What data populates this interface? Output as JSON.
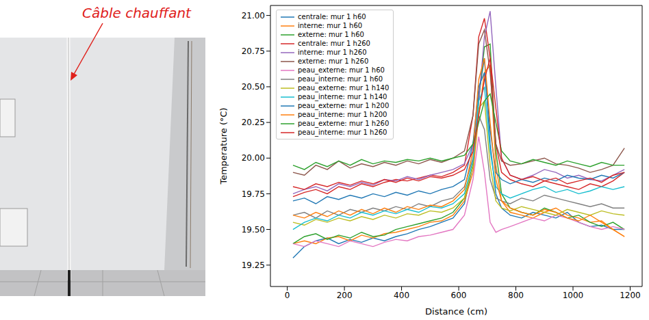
{
  "chart_data": {
    "type": "line",
    "xlabel": "Distance (cm)",
    "ylabel": "Temperature (°C)",
    "legend": "upper left",
    "grid": false,
    "xlim": [
      -59,
      1242
    ],
    "ylim": [
      19.1,
      21.07
    ],
    "xticks": [
      0,
      200,
      400,
      600,
      800,
      1000,
      1200
    ],
    "yticks": [
      19.25,
      {
        "value": 19.5,
        "label": "19.50"
      },
      19.75,
      {
        "value": 20,
        "label": "20.00"
      },
      20.25,
      {
        "value": 20.5,
        "label": "20.50"
      },
      20.75,
      {
        "value": 21,
        "label": "21.00"
      }
    ],
    "x": [
      20,
      60,
      100,
      140,
      180,
      220,
      260,
      300,
      340,
      380,
      420,
      460,
      500,
      540,
      580,
      620,
      650,
      670,
      690,
      710,
      730,
      750,
      780,
      820,
      860,
      900,
      940,
      980,
      1020,
      1060,
      1100,
      1140,
      1180
    ],
    "series": [
      {
        "name": "centrale: mur 1 h60",
        "color": "#1f77b4",
        "values": [
          19.3,
          19.38,
          19.42,
          19.44,
          19.4,
          19.43,
          19.41,
          19.44,
          19.42,
          19.45,
          19.47,
          19.5,
          19.52,
          19.55,
          19.58,
          19.68,
          19.95,
          20.45,
          20.7,
          20.1,
          19.75,
          19.65,
          19.6,
          19.58,
          19.62,
          19.6,
          19.58,
          19.62,
          19.55,
          19.52,
          19.53,
          19.5,
          19.5
        ]
      },
      {
        "name": "interne: mur 1 h60",
        "color": "#ff7f0e",
        "values": [
          19.4,
          19.42,
          19.4,
          19.44,
          19.45,
          19.42,
          19.46,
          19.44,
          19.47,
          19.48,
          19.5,
          19.52,
          19.55,
          19.56,
          19.6,
          19.7,
          19.9,
          20.3,
          20.6,
          20.65,
          19.95,
          19.7,
          19.62,
          19.6,
          19.58,
          19.62,
          19.65,
          19.6,
          19.58,
          19.55,
          19.56,
          19.5,
          19.45
        ]
      },
      {
        "name": "externe: mur 1 h60",
        "color": "#2ca02c",
        "values": [
          19.4,
          19.45,
          19.47,
          19.43,
          19.46,
          19.44,
          19.48,
          19.45,
          19.46,
          19.5,
          19.52,
          19.54,
          19.56,
          19.58,
          19.62,
          19.72,
          19.95,
          20.4,
          20.78,
          20.8,
          20.05,
          19.75,
          19.65,
          19.62,
          19.6,
          19.65,
          19.62,
          19.58,
          19.6,
          19.55,
          19.52,
          19.55,
          19.5
        ]
      },
      {
        "name": "centrale: mur 1 h260",
        "color": "#d62728",
        "values": [
          19.73,
          19.76,
          19.78,
          19.75,
          19.8,
          19.78,
          19.82,
          19.8,
          19.83,
          19.85,
          19.84,
          19.86,
          19.88,
          19.87,
          19.9,
          19.95,
          20.3,
          20.85,
          20.98,
          20.7,
          20.1,
          19.9,
          19.85,
          19.82,
          19.8,
          19.84,
          19.82,
          19.8,
          19.78,
          19.82,
          19.8,
          19.84,
          19.9
        ]
      },
      {
        "name": "interne: mur 1 h260",
        "color": "#9467bd",
        "values": [
          19.75,
          19.78,
          19.8,
          19.77,
          19.82,
          19.8,
          19.83,
          19.81,
          19.85,
          19.84,
          19.87,
          19.85,
          19.88,
          19.9,
          19.92,
          19.96,
          20.1,
          20.4,
          20.85,
          21.03,
          20.5,
          20.0,
          19.88,
          19.85,
          19.88,
          19.92,
          19.9,
          19.86,
          19.88,
          19.85,
          19.84,
          19.88,
          19.92
        ]
      },
      {
        "name": "externe: mur 1 h260",
        "color": "#8c564b",
        "values": [
          19.9,
          19.88,
          19.95,
          19.92,
          19.98,
          19.93,
          19.96,
          19.94,
          19.97,
          19.95,
          19.98,
          19.96,
          19.99,
          19.97,
          20.0,
          20.05,
          20.3,
          20.8,
          20.9,
          20.6,
          20.1,
          19.98,
          19.95,
          19.96,
          19.98,
          20.0,
          19.96,
          19.95,
          19.93,
          19.9,
          19.92,
          19.95,
          20.07
        ]
      },
      {
        "name": "peau_externe: mur 1 h60",
        "color": "#e377c2",
        "values": [
          19.4,
          19.38,
          19.42,
          19.4,
          19.38,
          19.42,
          19.4,
          19.38,
          19.41,
          19.43,
          19.42,
          19.45,
          19.46,
          19.48,
          19.5,
          19.6,
          19.85,
          20.15,
          19.9,
          19.55,
          19.48,
          19.5,
          19.52,
          19.55,
          19.58,
          19.56,
          19.6,
          19.58,
          19.55,
          19.52,
          19.5,
          19.52,
          19.5
        ]
      },
      {
        "name": "peau_interne: mur 1 h60",
        "color": "#7f7f7f",
        "values": [
          19.6,
          19.62,
          19.58,
          19.63,
          19.6,
          19.64,
          19.62,
          19.65,
          19.63,
          19.66,
          19.64,
          19.68,
          19.66,
          19.7,
          19.72,
          19.8,
          20.0,
          20.3,
          20.2,
          19.85,
          19.72,
          19.7,
          19.68,
          19.72,
          19.7,
          19.74,
          19.72,
          19.7,
          19.68,
          19.66,
          19.68,
          19.65,
          19.65
        ]
      },
      {
        "name": "peau_externe: mur 1 h140",
        "color": "#bcbd22",
        "values": [
          19.55,
          19.53,
          19.57,
          19.55,
          19.58,
          19.56,
          19.59,
          19.57,
          19.6,
          19.58,
          19.61,
          19.6,
          19.63,
          19.62,
          19.65,
          19.72,
          19.95,
          20.35,
          20.4,
          19.95,
          19.7,
          19.65,
          19.63,
          19.66,
          19.64,
          19.62,
          19.6,
          19.64,
          19.62,
          19.6,
          19.63,
          19.61,
          19.6
        ]
      },
      {
        "name": "peau_interne: mur 1 h140",
        "color": "#17becf",
        "values": [
          19.5,
          19.55,
          19.58,
          19.56,
          19.6,
          19.58,
          19.62,
          19.6,
          19.63,
          19.61,
          19.64,
          19.62,
          19.66,
          19.65,
          19.68,
          19.75,
          19.98,
          20.4,
          20.5,
          20.05,
          19.8,
          19.75,
          19.72,
          19.75,
          19.78,
          19.8,
          19.76,
          19.78,
          19.75,
          19.77,
          19.8,
          19.78,
          19.8
        ]
      },
      {
        "name": "peau_externe: mur 1 h200",
        "color": "#1f77b4",
        "values": [
          19.7,
          19.72,
          19.68,
          19.73,
          19.71,
          19.74,
          19.72,
          19.75,
          19.73,
          19.76,
          19.74,
          19.77,
          19.75,
          19.78,
          19.8,
          19.85,
          20.1,
          20.5,
          20.6,
          20.2,
          19.9,
          19.85,
          19.82,
          19.85,
          19.83,
          19.86,
          19.84,
          19.88,
          19.86,
          19.85,
          19.88,
          19.86,
          19.9
        ]
      },
      {
        "name": "peau_interne: mur 1 h200",
        "color": "#ff7f0e",
        "values": [
          19.6,
          19.58,
          19.62,
          19.59,
          19.63,
          19.6,
          19.64,
          19.61,
          19.65,
          19.62,
          19.66,
          19.64,
          19.67,
          19.66,
          19.7,
          19.78,
          20.05,
          20.55,
          20.7,
          20.25,
          19.85,
          19.7,
          19.65,
          19.62,
          19.6,
          19.64,
          19.62,
          19.58,
          19.56,
          19.6,
          19.55,
          19.5,
          19.45
        ]
      },
      {
        "name": "peau_externe: mur 1 h260",
        "color": "#2ca02c",
        "values": [
          19.95,
          19.92,
          19.97,
          19.94,
          19.98,
          19.95,
          19.99,
          19.96,
          19.98,
          19.97,
          19.99,
          19.98,
          20.0,
          19.98,
          20.0,
          20.02,
          20.1,
          20.25,
          20.4,
          20.45,
          20.25,
          20.05,
          19.98,
          19.96,
          19.99,
          19.97,
          19.95,
          19.98,
          19.96,
          19.94,
          19.97,
          19.95,
          19.95
        ]
      },
      {
        "name": "peau_interne: mur 1 h260",
        "color": "#d62728",
        "values": [
          19.8,
          19.78,
          19.82,
          19.8,
          19.83,
          19.81,
          19.84,
          19.82,
          19.85,
          19.83,
          19.86,
          19.84,
          19.87,
          19.86,
          19.88,
          19.92,
          20.05,
          20.3,
          20.55,
          20.7,
          20.35,
          20.0,
          19.88,
          19.85,
          19.87,
          19.84,
          19.86,
          19.82,
          19.84,
          19.86,
          19.83,
          19.88,
          19.9
        ]
      }
    ]
  },
  "photo": {
    "annotation": "Câble chauffant"
  }
}
